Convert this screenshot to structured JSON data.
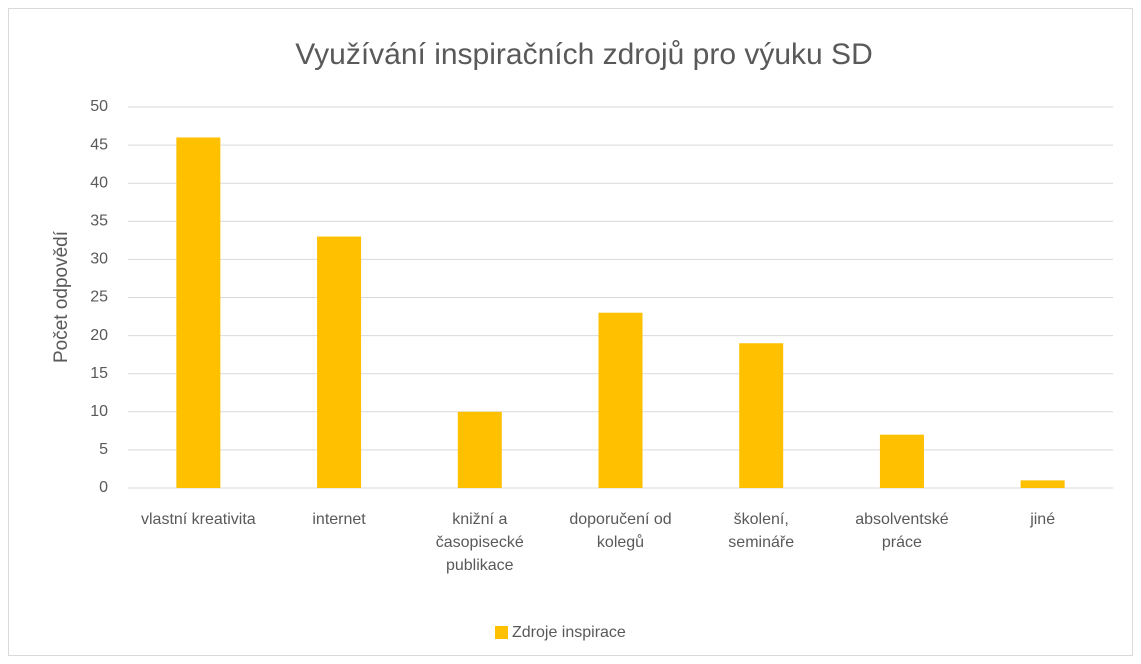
{
  "chart_data": {
    "type": "bar",
    "title": "Využívání inspiračních zdrojů pro výuku SD",
    "y_label": "Počet odpovědí",
    "categories": [
      "vlastní kreativita",
      "internet",
      "knižní a časopisecké publikace",
      "doporučení od kolegů",
      "školení, semináře",
      "absolventské práce",
      "jiné"
    ],
    "series": [
      {
        "name": "Zdroje inspirace",
        "color": "#FFC000",
        "values": [
          46,
          33,
          10,
          23,
          19,
          7,
          1
        ]
      }
    ],
    "ylim": [
      0,
      50
    ],
    "yticks": [
      0,
      5,
      10,
      15,
      20,
      25,
      30,
      35,
      40,
      45,
      50
    ],
    "grid": true,
    "legend": "bottom"
  }
}
